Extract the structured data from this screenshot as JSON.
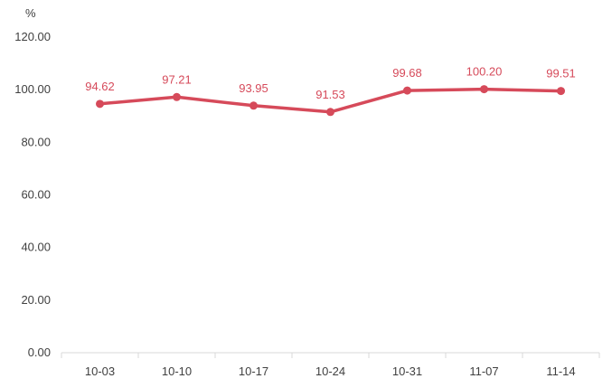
{
  "chart_data": {
    "type": "line",
    "title": "",
    "xlabel": "",
    "ylabel": "%",
    "categories": [
      "10-03",
      "10-10",
      "10-17",
      "10-24",
      "10-31",
      "11-07",
      "11-14"
    ],
    "values": [
      94.62,
      97.21,
      93.95,
      91.53,
      99.68,
      100.2,
      99.51
    ],
    "value_labels": [
      "94.62",
      "97.21",
      "93.95",
      "91.53",
      "99.68",
      "100.20",
      "99.51"
    ],
    "yticks": [
      "0.00",
      "20.00",
      "40.00",
      "60.00",
      "80.00",
      "100.00",
      "120.00"
    ],
    "ylim": [
      0,
      120
    ],
    "grid": false,
    "legend": "none",
    "colors": {
      "series": "#d64a5a",
      "labels": "#d64a5a",
      "axis": "#d9d9d9",
      "text": "#404040"
    }
  }
}
